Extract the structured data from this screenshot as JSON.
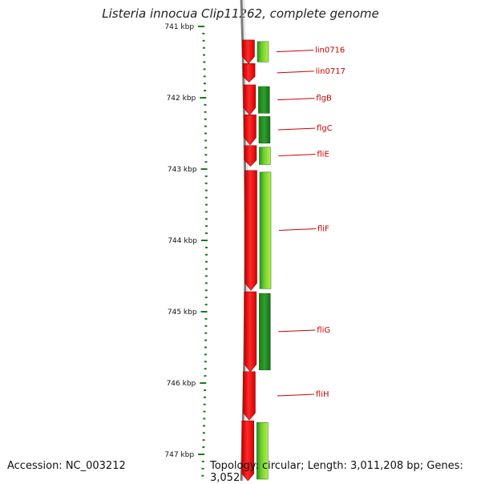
{
  "title": "Listeria innocua Clip11262, complete genome",
  "footer": {
    "accession": "Accession: NC_003212",
    "topology": "Topology: circular; Length: 3,011,208 bp; Genes: 3,052"
  },
  "colors": {
    "forward_strand": "#ff0000",
    "reverse_strand_dark": "#1e8a1e",
    "reverse_strand_light": "#9fe83a",
    "backbone": "#7a7a7a",
    "tick": "#1a7a1a",
    "gene_label": "#cc0000"
  },
  "axis": {
    "unit": "kbp",
    "ticks": [
      {
        "label": "741 kbp",
        "value": 741
      },
      {
        "label": "742 kbp",
        "value": 742
      },
      {
        "label": "743 kbp",
        "value": 743
      },
      {
        "label": "744 kbp",
        "value": 744
      },
      {
        "label": "745 kbp",
        "value": 745
      },
      {
        "label": "746 kbp",
        "value": 746
      },
      {
        "label": "747 kbp",
        "value": 747
      }
    ]
  },
  "genes": [
    {
      "label": "lin0716",
      "start": 741.19,
      "end": 741.52,
      "shade": "mixed"
    },
    {
      "label": "lin0717",
      "start": 741.52,
      "end": 741.78,
      "shade": "none"
    },
    {
      "label": "flgB",
      "start": 741.82,
      "end": 742.24,
      "shade": "dark"
    },
    {
      "label": "flgC",
      "start": 742.24,
      "end": 742.66,
      "shade": "dark"
    },
    {
      "label": "fliE",
      "start": 742.67,
      "end": 742.96,
      "shade": "mixed"
    },
    {
      "label": "fliF",
      "start": 743.02,
      "end": 744.7,
      "shade": "mixed"
    },
    {
      "label": "fliG",
      "start": 744.72,
      "end": 745.84,
      "shade": "dark"
    },
    {
      "label": "fliH",
      "start": 745.84,
      "end": 746.52,
      "shade": "none"
    },
    {
      "label": "",
      "start": 746.53,
      "end": 747.4,
      "shade": "mixed"
    }
  ]
}
